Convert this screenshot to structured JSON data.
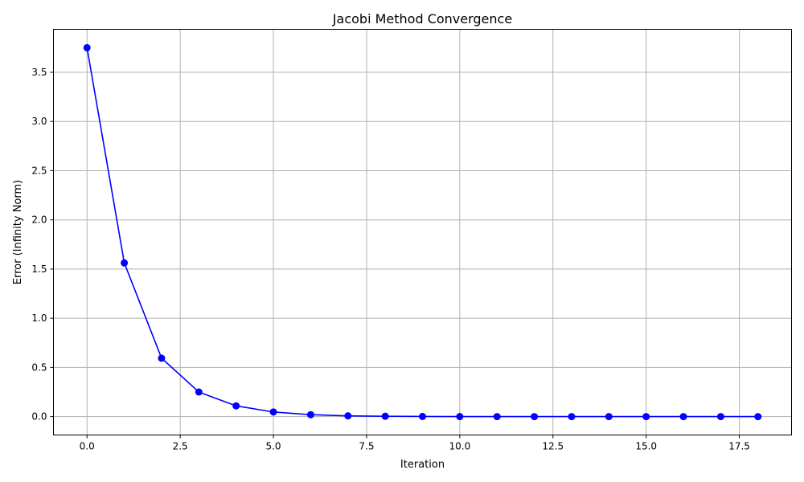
{
  "chart_data": {
    "type": "line",
    "title": "Jacobi Method Convergence",
    "xlabel": "Iteration",
    "ylabel": "Error (Infinity Norm)",
    "xlim": [
      -0.9,
      18.9
    ],
    "ylim": [
      -0.187,
      3.937
    ],
    "xticks": [
      0,
      2.5,
      5,
      7.5,
      10,
      12.5,
      15,
      17.5
    ],
    "xtick_labels": [
      "0.0",
      "2.5",
      "5.0",
      "7.5",
      "10.0",
      "12.5",
      "15.0",
      "17.5"
    ],
    "yticks": [
      0,
      0.5,
      1,
      1.5,
      2,
      2.5,
      3,
      3.5
    ],
    "ytick_labels": [
      "0.0",
      "0.5",
      "1.0",
      "1.5",
      "2.0",
      "2.5",
      "3.0",
      "3.5"
    ],
    "grid": true,
    "legend": false,
    "series": [
      {
        "color": "#0000ff",
        "marker": "circle",
        "x": [
          0,
          1,
          2,
          3,
          4,
          5,
          6,
          7,
          8,
          9,
          10,
          11,
          12,
          13,
          14,
          15,
          16,
          17,
          18
        ],
        "y": [
          3.75,
          1.5625,
          0.5938,
          0.25,
          0.1094,
          0.0469,
          0.0195,
          0.0078,
          0.0035,
          0.0015,
          0.0006,
          0.0003,
          0.0001,
          0.0,
          0.0,
          0.0,
          0.0,
          0.0,
          0.0
        ]
      }
    ]
  }
}
